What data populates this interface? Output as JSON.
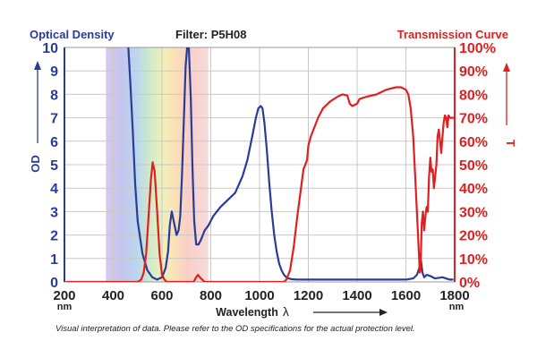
{
  "header": {
    "left_label": "Optical Density",
    "center_label": "Filter: P5H08",
    "right_label": "Transmission Curve"
  },
  "footnote": "Visual interpretation of data. Please refer to the OD specifications for the actual protection level.",
  "chart_data": {
    "type": "line",
    "title": "Filter: P5H08",
    "xlabel": "Wavelength",
    "xlabel_symbol": "λ",
    "x_unit": "nm",
    "xlim": [
      200,
      1800
    ],
    "x_ticks": [
      200,
      400,
      600,
      800,
      1000,
      1200,
      1400,
      1600,
      1800
    ],
    "ylabel_left": "OD",
    "ylim_left": [
      0,
      10
    ],
    "y_ticks_left": [
      0,
      1,
      2,
      3,
      4,
      5,
      6,
      7,
      8,
      9,
      10
    ],
    "ylabel_right": "T",
    "ylim_right": [
      0,
      100
    ],
    "y_ticks_right": [
      "0%",
      "10%",
      "20%",
      "30%",
      "40%",
      "50%",
      "60%",
      "70%",
      "80%",
      "90%",
      "100%"
    ],
    "grid": true,
    "legend": "axis titles (left: Optical Density, right: Transmission Curve)",
    "colors": {
      "od": "#2b3b97",
      "transmission": "#e02020",
      "axis_left": "#2b3b97",
      "axis_right": "#e02020"
    },
    "visible_band_nm": [
      370,
      790
    ],
    "series": [
      {
        "name": "Optical Density",
        "axis": "left",
        "color": "#2b3b97",
        "x": [
          462,
          470,
          480,
          490,
          500,
          520,
          540,
          560,
          580,
          600,
          615,
          625,
          632,
          640,
          650,
          660,
          668,
          675,
          682,
          690,
          697,
          703,
          710,
          718,
          725,
          732,
          740,
          750,
          760,
          775,
          790,
          810,
          840,
          870,
          900,
          930,
          950,
          970,
          985,
          995,
          1005,
          1012,
          1020,
          1030,
          1040,
          1050,
          1060,
          1070,
          1080,
          1090,
          1100,
          1110,
          1120,
          1130,
          1150,
          1200,
          1300,
          1400,
          1500,
          1560,
          1600,
          1630,
          1645,
          1655,
          1662,
          1668,
          1675,
          1685,
          1700,
          1720,
          1750,
          1780,
          1795
        ],
        "y": [
          10,
          8.5,
          6.5,
          4.2,
          2.6,
          1.2,
          0.5,
          0.2,
          0.1,
          0.2,
          0.6,
          1.3,
          2.4,
          3.0,
          2.5,
          2.0,
          2.2,
          2.8,
          4.5,
          7.0,
          9.2,
          10,
          10,
          7.8,
          4.8,
          2.6,
          1.6,
          1.6,
          1.8,
          2.2,
          2.4,
          2.8,
          3.2,
          3.5,
          3.8,
          4.5,
          5.2,
          6.2,
          7.0,
          7.4,
          7.5,
          7.4,
          6.8,
          5.6,
          4.2,
          3.0,
          2.0,
          1.3,
          0.8,
          0.5,
          0.3,
          0.2,
          0.15,
          0.12,
          0.1,
          0.1,
          0.1,
          0.1,
          0.1,
          0.1,
          0.1,
          0.15,
          0.3,
          0.6,
          0.9,
          0.4,
          0.2,
          0.3,
          0.25,
          0.15,
          0.2,
          0.1,
          0.1
        ]
      },
      {
        "name": "Transmission Curve",
        "axis": "right",
        "color": "#e02020",
        "x": [
          205,
          500,
          515,
          525,
          535,
          545,
          555,
          562,
          570,
          580,
          590,
          600,
          610,
          620,
          640,
          700,
          730,
          740,
          748,
          755,
          765,
          775,
          790,
          820,
          900,
          1000,
          1100,
          1110,
          1125,
          1140,
          1155,
          1170,
          1180,
          1195,
          1200,
          1210,
          1225,
          1240,
          1260,
          1290,
          1320,
          1340,
          1360,
          1370,
          1380,
          1400,
          1410,
          1440,
          1480,
          1520,
          1560,
          1580,
          1590,
          1600,
          1610,
          1620,
          1630,
          1638,
          1645,
          1652,
          1657,
          1660,
          1665,
          1670,
          1675,
          1680,
          1685,
          1690,
          1695,
          1700,
          1705,
          1710,
          1715,
          1720,
          1725,
          1730,
          1735,
          1740,
          1745,
          1750,
          1755,
          1760,
          1765,
          1770,
          1775,
          1780,
          1790,
          1800
        ],
        "y": [
          0,
          0,
          1,
          4,
          12,
          28,
          44,
          51,
          47,
          30,
          12,
          3,
          1,
          0,
          0,
          0,
          0,
          2,
          3,
          2,
          1,
          0,
          0,
          0,
          0,
          0,
          0,
          1,
          5,
          15,
          28,
          40,
          48,
          52,
          58,
          62,
          66,
          70,
          74,
          77,
          79,
          80,
          79.5,
          76,
          75,
          76,
          78,
          79,
          80,
          82,
          83,
          83,
          82.5,
          82,
          80,
          74,
          62,
          45,
          30,
          15,
          4,
          5,
          25,
          30,
          22,
          28,
          32,
          30,
          45,
          53,
          47,
          48,
          40,
          45,
          50,
          62,
          65,
          60,
          55,
          62,
          68,
          71,
          70,
          66,
          71,
          70,
          70,
          70
        ]
      }
    ]
  }
}
